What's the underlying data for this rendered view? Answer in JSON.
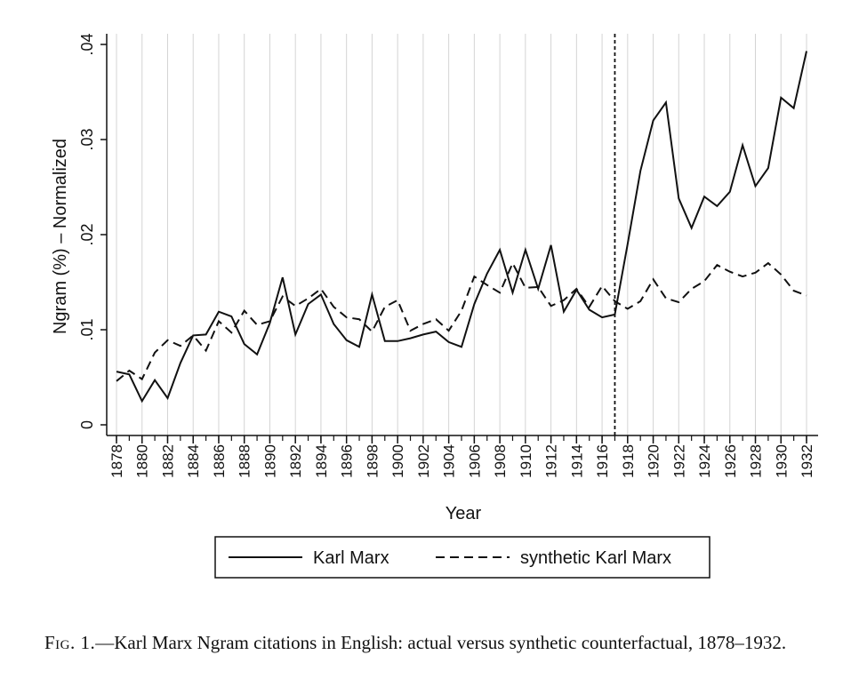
{
  "chart_data": {
    "type": "line",
    "xlabel": "Year",
    "ylabel": "Ngram (%) – Normalized",
    "xlim": [
      1878,
      1932
    ],
    "ylim": [
      0,
      0.04
    ],
    "yticks": [
      0,
      0.01,
      0.02,
      0.03,
      0.04
    ],
    "ytick_labels": [
      "0",
      ".01",
      ".02",
      ".03",
      ".04"
    ],
    "xticks": [
      1878,
      1880,
      1882,
      1884,
      1886,
      1888,
      1890,
      1892,
      1894,
      1896,
      1898,
      1900,
      1902,
      1904,
      1906,
      1908,
      1910,
      1912,
      1914,
      1916,
      1918,
      1920,
      1922,
      1924,
      1926,
      1928,
      1930,
      1932
    ],
    "xtick_labels": [
      "1878",
      "1880",
      "1882",
      "1884",
      "1886",
      "1888",
      "1890",
      "1892",
      "1894",
      "1896",
      "1898",
      "1900",
      "1902",
      "1904",
      "1906",
      "1908",
      "1910",
      "1912",
      "1914",
      "1916",
      "1918",
      "1920",
      "1922",
      "1924",
      "1926",
      "1928",
      "1930",
      "1932"
    ],
    "grid": "vertical",
    "vline": 1917,
    "x": [
      1878,
      1879,
      1880,
      1881,
      1882,
      1883,
      1884,
      1885,
      1886,
      1887,
      1888,
      1889,
      1890,
      1891,
      1892,
      1893,
      1894,
      1895,
      1896,
      1897,
      1898,
      1899,
      1900,
      1901,
      1902,
      1903,
      1904,
      1905,
      1906,
      1907,
      1908,
      1909,
      1910,
      1911,
      1912,
      1913,
      1914,
      1915,
      1916,
      1917,
      1918,
      1919,
      1920,
      1921,
      1922,
      1923,
      1924,
      1925,
      1926,
      1927,
      1928,
      1929,
      1930,
      1931,
      1932
    ],
    "series": [
      {
        "name": "Karl Marx",
        "style": "solid",
        "values": [
          0.0056,
          0.0053,
          0.0025,
          0.0047,
          0.0028,
          0.0065,
          0.0094,
          0.0095,
          0.0119,
          0.0114,
          0.0085,
          0.0074,
          0.0107,
          0.0155,
          0.0095,
          0.0127,
          0.0137,
          0.0106,
          0.0089,
          0.0082,
          0.0137,
          0.0088,
          0.0088,
          0.0091,
          0.0095,
          0.0098,
          0.0087,
          0.0082,
          0.0127,
          0.0159,
          0.0184,
          0.0139,
          0.0184,
          0.0143,
          0.0189,
          0.0119,
          0.0142,
          0.0121,
          0.0113,
          0.0116,
          0.019,
          0.0267,
          0.032,
          0.0339,
          0.0238,
          0.0207,
          0.024,
          0.023,
          0.0245,
          0.0294,
          0.0251,
          0.027,
          0.0344,
          0.0333,
          0.0393
        ]
      },
      {
        "name": "synthetic Karl Marx",
        "style": "dashed",
        "values": [
          0.0046,
          0.0057,
          0.0048,
          0.0076,
          0.0089,
          0.0083,
          0.0094,
          0.0078,
          0.0109,
          0.0097,
          0.012,
          0.0105,
          0.0109,
          0.0135,
          0.0125,
          0.0133,
          0.0143,
          0.0124,
          0.0113,
          0.0111,
          0.0098,
          0.0124,
          0.0131,
          0.0099,
          0.0106,
          0.0111,
          0.0099,
          0.012,
          0.0156,
          0.0147,
          0.0139,
          0.017,
          0.0144,
          0.0145,
          0.0125,
          0.0131,
          0.0143,
          0.0124,
          0.0146,
          0.013,
          0.0122,
          0.013,
          0.0153,
          0.0133,
          0.0129,
          0.0143,
          0.0151,
          0.0168,
          0.0161,
          0.0156,
          0.016,
          0.017,
          0.0158,
          0.0141,
          0.0136
        ]
      }
    ]
  },
  "legend": {
    "items": [
      "Karl Marx",
      "synthetic Karl Marx"
    ]
  },
  "caption": {
    "label": "Fig. 1.",
    "text": "—Karl Marx Ngram citations in English: actual versus synthetic counterfactual, 1878–1932."
  }
}
